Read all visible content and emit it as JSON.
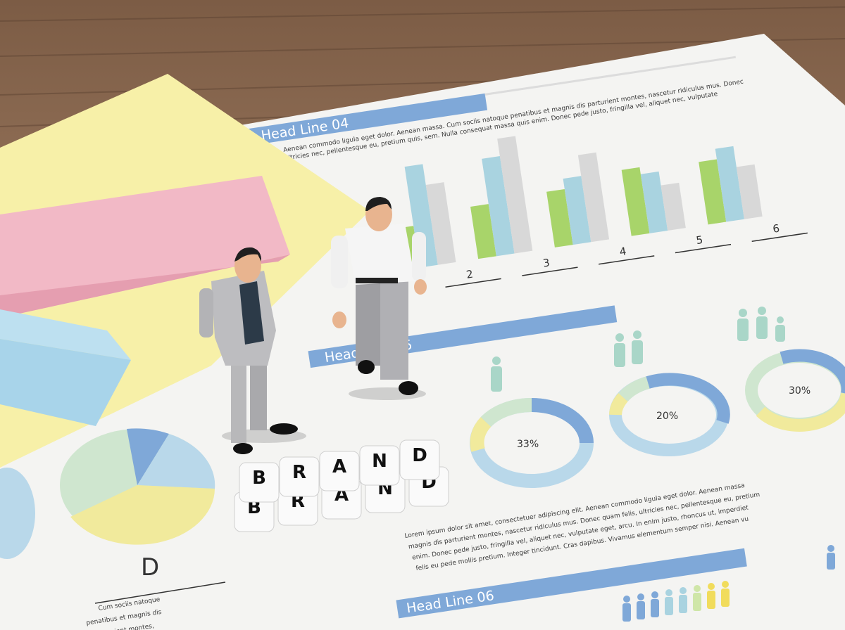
{
  "paper": {
    "headline_04": "Head Line 04",
    "headline_05": "Head Line 05",
    "headline_06": "Head Line 06",
    "text_04_line1": "Aenean commodo ligula eget dolor. Aenean massa. Cum sociis natoque penatibus et magnis dis parturient montes, nascetur ridiculus mus. Donec",
    "text_04_line2": "ultricies nec, pellentesque eu, pretium quis, sem. Nulla consequat massa quis enim. Donec pede justo, fringilla vel, aliquet nec, vulputate",
    "bar_labels": [
      "2",
      "3",
      "4",
      "5",
      "6"
    ],
    "donut_labels": [
      "33%",
      "20%",
      "30%"
    ],
    "paragraph": [
      "Lorem ipsum dolor sit amet, consectetuer adipiscing elit. Aenean commodo ligula eget dolor. Aenean massa",
      "magnis dis parturient montes, nascetur ridiculus mus. Donec quam felis, ultricies nec, pellentesque eu, pretium",
      "enim. Donec pede justo, fringilla vel, aliquet nec, vulputate eget, arcu. In enim justo, rhoncus ut, imperdiet",
      "felis eu pede mollis pretium. Integer tincidunt. Cras dapibus. Vivamus elementum semper nisi. Aenean vu"
    ],
    "pie_label": "D",
    "pie_text": [
      "Cum sociis natoque",
      "penatibus et magnis dis",
      "parturient montes,"
    ]
  },
  "blocks": {
    "top_row": [
      "B",
      "R",
      "A",
      "N",
      "D"
    ],
    "bottom_row": [
      "B",
      "R",
      "A",
      "N",
      "D"
    ]
  },
  "colors": {
    "wood": "#8a6a52",
    "paper": "#f4f4f2",
    "blue": "#7fa8d8",
    "light_blue": "#a9d3e0",
    "green": "#a8d46a",
    "gray": "#d8d8d8",
    "yellow": "#f7f0a8",
    "pink": "#f2b9c6",
    "sky": "#a8d4ea"
  }
}
